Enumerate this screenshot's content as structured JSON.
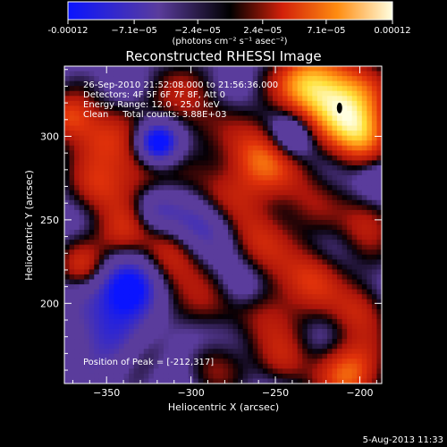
{
  "chart_data": {
    "type": "heatmap",
    "title": "Reconstructed RHESSI Image",
    "xlabel": "Heliocentric X (arcsec)",
    "ylabel": "Heliocentric Y (arcsec)",
    "xlim": [
      -375,
      -187
    ],
    "ylim": [
      152,
      342
    ],
    "xticks": [
      -350,
      -300,
      -250,
      -200
    ],
    "yticks": [
      200,
      250,
      300
    ],
    "colorbar": {
      "tick_labels": [
        "-0.00012",
        "−7.1e−05",
        "−2.4e−05",
        "2.4e−05",
        "7.1e−05",
        "0.00012"
      ],
      "tick_values": [
        -0.00012,
        -7.1e-05,
        -2.4e-05,
        2.4e-05,
        7.1e-05,
        0.00012
      ],
      "range": [
        -0.00012,
        0.00012
      ],
      "unit_label": "(photons cm⁻² s⁻¹ asec⁻²)"
    },
    "annotations": [
      "26-Sep-2010 21:52:08.000 to 21:56:36.000",
      "Detectors: 4F 5F 6F 7F 8F, Att 0",
      "Energy Range: 12.0 - 25.0 keV",
      "Clean     Total counts: 3.88E+03"
    ],
    "peak_label": "Position of Peak = [-212,317]",
    "peak": [
      -212,
      317
    ],
    "colors": {
      "low": "#0a14ff",
      "mid_low": "#5a3c9c",
      "zero": "#000000",
      "mid_high": "#d2200a",
      "high": "#ff8c10",
      "top": "#ffffe0"
    }
  },
  "footer": {
    "date": "5-Aug-2013 11:33"
  }
}
